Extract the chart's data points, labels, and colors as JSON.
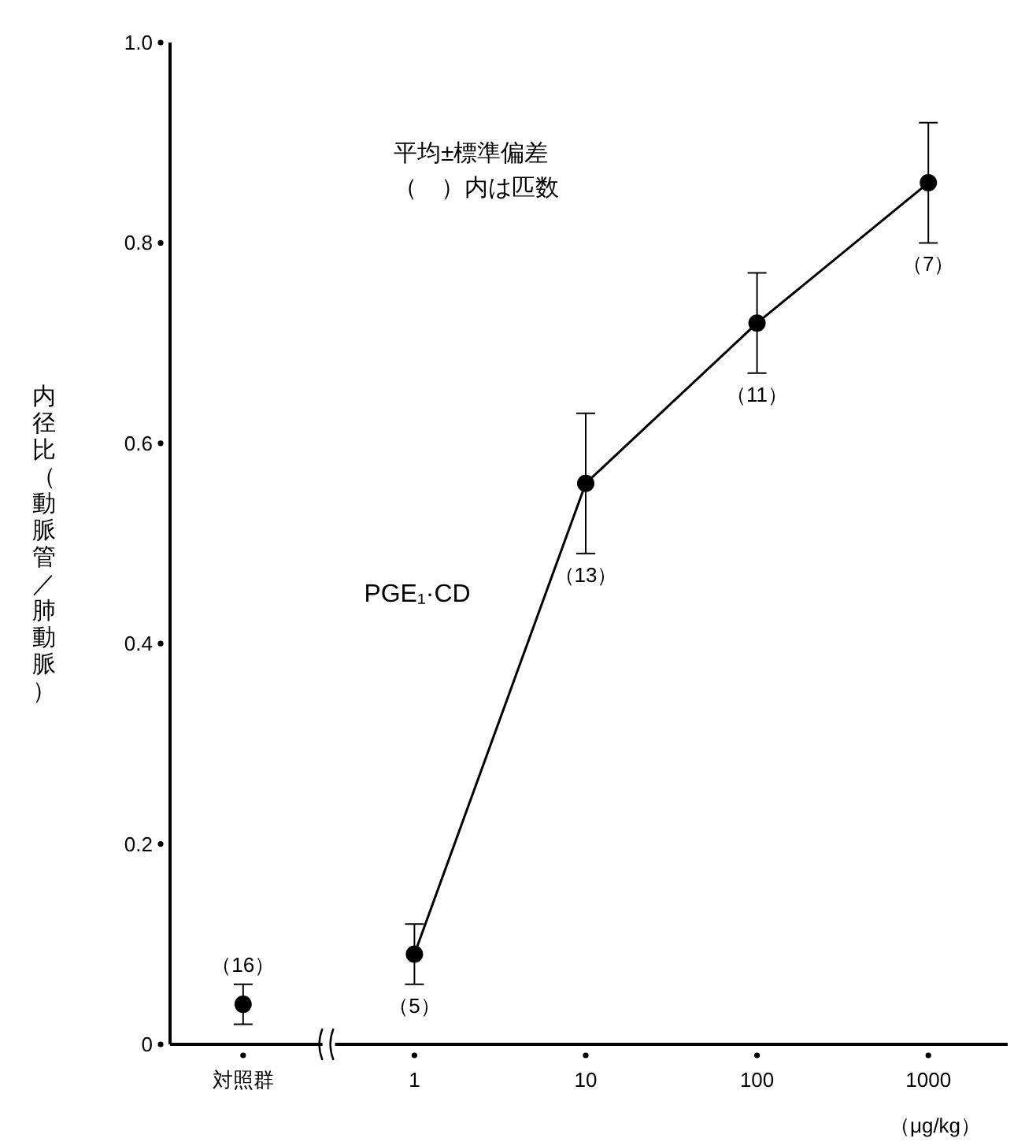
{
  "chart_data": {
    "type": "line",
    "categories": [
      "対照群",
      "1",
      "10",
      "100",
      "1000"
    ],
    "xlabel": "（μg/kg）",
    "ylabel": "内径比（動脈管／肺動脈）",
    "ylim": [
      0,
      1.0
    ],
    "yticks": [
      0,
      0.2,
      0.4,
      0.6,
      0.8,
      {
        "value": 1.0,
        "label": "1.0"
      }
    ],
    "series": [
      {
        "color": "#000000",
        "values": [
          0.04,
          null,
          null,
          null,
          null
        ],
        "errors": [
          0.02,
          null,
          null,
          null,
          null
        ]
      },
      {
        "name": "PGE₁·CD",
        "color": "#000000",
        "values": [
          null,
          0.09,
          0.56,
          0.72,
          0.86
        ],
        "errors": [
          null,
          0.03,
          0.07,
          0.05,
          0.06
        ]
      }
    ],
    "marker": "circle",
    "line_style": "solid",
    "grid": false,
    "legend": false,
    "annotations": [
      "平均±標準偏差",
      "（　）内は匹数",
      "（16）",
      "（5）",
      "（13）",
      "（11）",
      "（7）"
    ]
  }
}
